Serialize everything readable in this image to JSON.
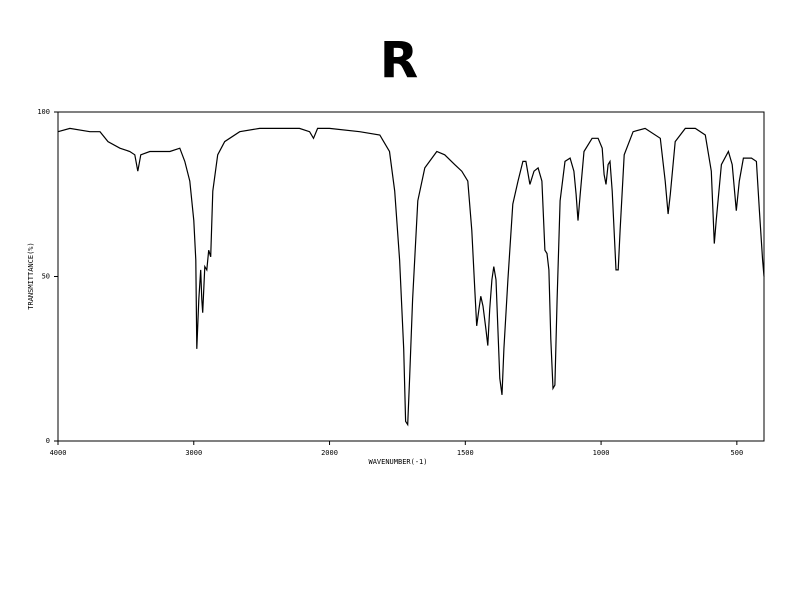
{
  "chart_data": {
    "type": "line",
    "title": "R",
    "x_label": "WAVENUMBER(-1)",
    "y_label": "TRANSMITTANCE(%)",
    "xlim": [
      4000,
      400
    ],
    "x_scale_break": 2000,
    "ylim": [
      0,
      100
    ],
    "xticks": [
      4000,
      3000,
      2000,
      1500,
      1000,
      500
    ],
    "yticks": [
      0,
      50,
      100
    ],
    "color": "#000000",
    "x": [
      4000,
      3912,
      3765,
      3691,
      3632,
      3544,
      3471,
      3434,
      3412,
      3390,
      3324,
      3250,
      3176,
      3103,
      3066,
      3029,
      3000,
      2985,
      2978,
      2963,
      2949,
      2941,
      2934,
      2919,
      2904,
      2890,
      2875,
      2860,
      2824,
      2772,
      2662,
      2515,
      2221,
      2147,
      2118,
      2088,
      2000,
      1889,
      1815,
      1779,
      1760,
      1742,
      1727,
      1720,
      1712,
      1705,
      1694,
      1675,
      1649,
      1605,
      1576,
      1539,
      1513,
      1491,
      1476,
      1465,
      1458,
      1450,
      1443,
      1435,
      1424,
      1417,
      1410,
      1402,
      1395,
      1387,
      1380,
      1373,
      1365,
      1358,
      1343,
      1325,
      1306,
      1288,
      1277,
      1262,
      1247,
      1232,
      1218,
      1207,
      1199,
      1192,
      1185,
      1177,
      1170,
      1162,
      1151,
      1133,
      1114,
      1100,
      1092,
      1085,
      1077,
      1063,
      1033,
      1011,
      996,
      989,
      982,
      974,
      967,
      959,
      945,
      937,
      930,
      915,
      882,
      838,
      782,
      764,
      753,
      745,
      727,
      690,
      653,
      616,
      594,
      583,
      576,
      557,
      531,
      517,
      502,
      491,
      476,
      446,
      428,
      417,
      405,
      400
    ],
    "values": [
      94,
      95,
      94,
      94,
      91,
      89,
      88,
      87,
      82,
      87,
      88,
      88,
      88,
      89,
      85,
      79,
      67,
      55,
      28,
      43,
      52,
      43,
      39,
      53,
      52,
      58,
      56,
      76,
      87,
      91,
      94,
      95,
      95,
      94,
      92,
      95,
      95,
      94,
      93,
      88,
      76,
      55,
      28,
      6,
      5,
      19,
      43,
      73,
      83,
      88,
      87,
      84,
      82,
      79,
      64,
      46,
      35,
      40,
      44,
      41,
      34,
      29,
      40,
      49,
      53,
      49,
      34,
      19,
      14,
      28,
      49,
      72,
      79,
      85,
      85,
      78,
      82,
      83,
      79,
      58,
      57,
      52,
      31,
      16,
      17,
      43,
      73,
      85,
      86,
      82,
      75,
      67,
      75,
      88,
      92,
      92,
      89,
      81,
      78,
      84,
      85,
      76,
      52,
      52,
      64,
      87,
      94,
      95,
      92,
      79,
      69,
      75,
      91,
      95,
      95,
      93,
      82,
      60,
      67,
      84,
      88,
      84,
      70,
      79,
      86,
      86,
      85,
      70,
      55,
      50
    ]
  }
}
